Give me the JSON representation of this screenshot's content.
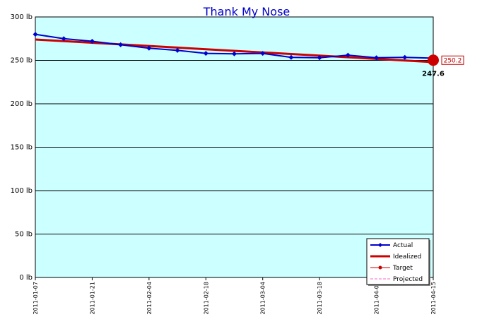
{
  "chart_data": {
    "type": "line",
    "title": "Thank My Nose",
    "ylim": [
      0,
      300
    ],
    "y_ticks": [
      "0 lb",
      "50 lb",
      "100 lb",
      "150 lb",
      "200 lb",
      "250 lb",
      "300 lb"
    ],
    "x_range": [
      "2011-01-07",
      "2011-04-15"
    ],
    "x_ticks": [
      "2011-01-07",
      "2011-01-21",
      "2011-02-04",
      "2011-02-18",
      "2011-03-04",
      "2011-03-18",
      "2011-04-01",
      "2011-04-15"
    ],
    "grid": "horizontal",
    "legend_placement": "bottom-right",
    "series": [
      {
        "name": "Actual",
        "color": "#0000cc",
        "x": [
          "2011-01-07",
          "2011-01-14",
          "2011-01-21",
          "2011-01-28",
          "2011-02-04",
          "2011-02-11",
          "2011-02-18",
          "2011-02-25",
          "2011-03-04",
          "2011-03-11",
          "2011-03-18",
          "2011-03-25",
          "2011-04-01",
          "2011-04-08",
          "2011-04-15"
        ],
        "y": [
          280,
          275,
          272,
          268,
          264,
          261.5,
          258,
          257.5,
          258,
          253.5,
          253,
          256,
          253,
          253.5,
          252.5
        ]
      },
      {
        "name": "Idealized",
        "color": "#cc0000",
        "x": [
          "2011-01-07",
          "2011-04-15"
        ],
        "y": [
          274,
          248
        ]
      },
      {
        "name": "Target",
        "color": "#cc0000",
        "x": [
          "2011-04-15"
        ],
        "y": [
          250.2
        ]
      },
      {
        "name": "Projected",
        "color": "#ff66cc",
        "x": [],
        "y": []
      }
    ],
    "annotations": {
      "end_value": "250.2",
      "target_value": "247.6"
    }
  }
}
